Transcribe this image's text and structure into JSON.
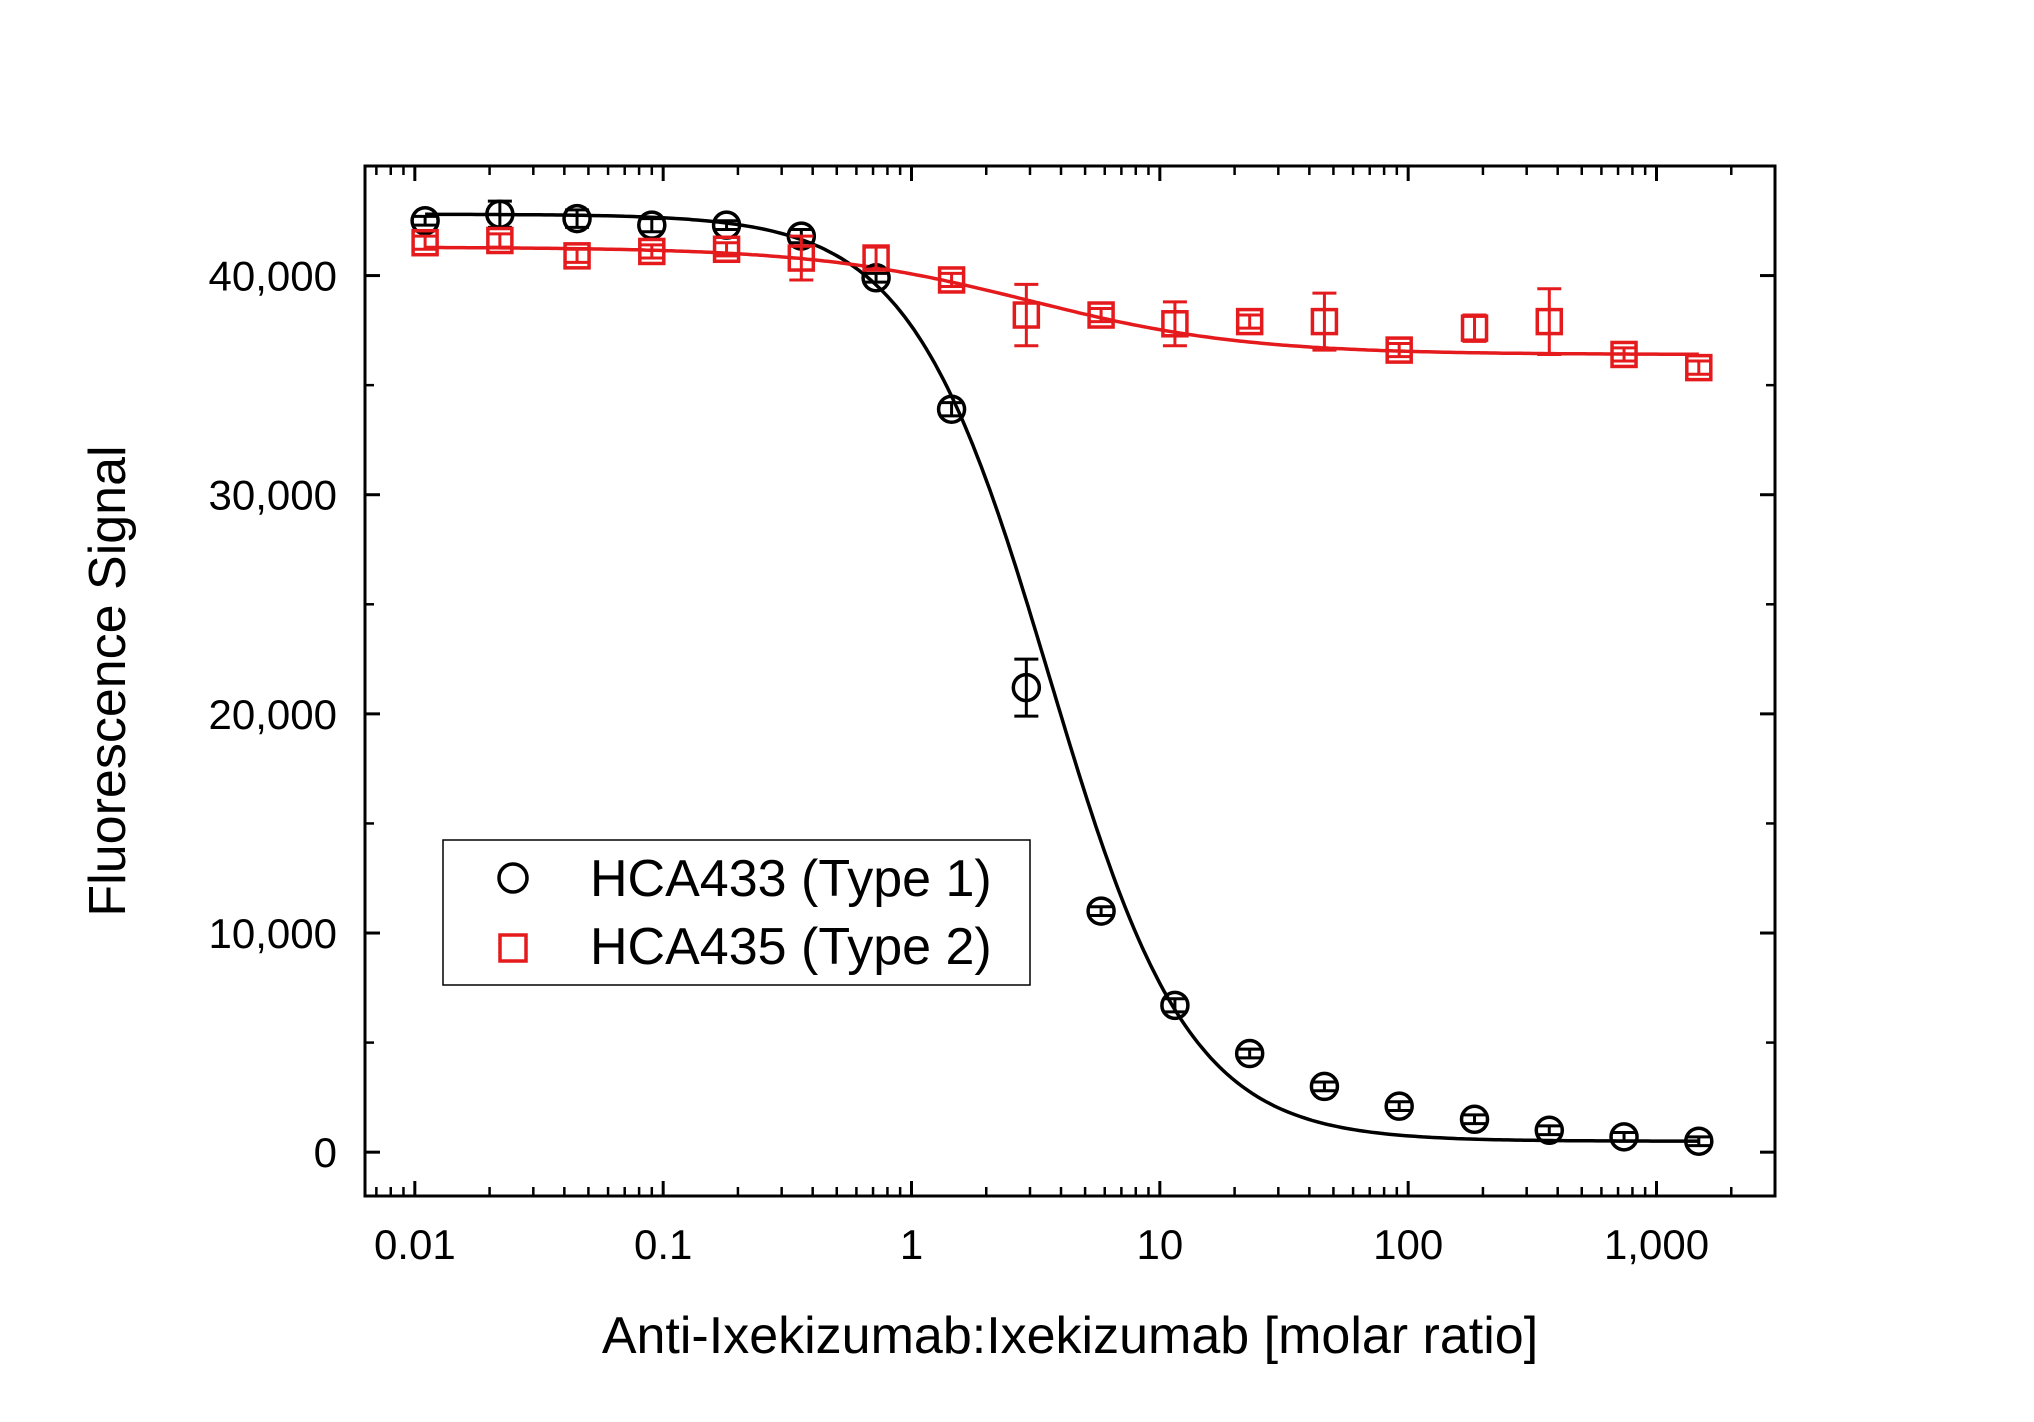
{
  "chart_data": {
    "type": "scatter",
    "title": "",
    "xlabel": "Anti-Ixekizumab:Ixekizumab [molar ratio]",
    "ylabel": "Fluorescence Signal",
    "xscale": "log",
    "xlim": [
      0.0063,
      3000
    ],
    "ylim": [
      -2000,
      45000
    ],
    "grid": false,
    "legend_position": "bottom-left",
    "x_ticks": [
      {
        "value": 0.01,
        "label": "0.01"
      },
      {
        "value": 0.1,
        "label": "0.1"
      },
      {
        "value": 1,
        "label": "1"
      },
      {
        "value": 10,
        "label": "10"
      },
      {
        "value": 100,
        "label": "100"
      },
      {
        "value": 1000,
        "label": "1,000"
      }
    ],
    "y_ticks": [
      {
        "value": 0,
        "label": "0"
      },
      {
        "value": 10000,
        "label": "10,000"
      },
      {
        "value": 20000,
        "label": "20,000"
      },
      {
        "value": 30000,
        "label": "30,000"
      },
      {
        "value": 40000,
        "label": "40,000"
      }
    ],
    "y_minor_step": 5000,
    "series": [
      {
        "name": "HCA433 (Type 1)",
        "color": "#000000",
        "marker": "circle",
        "fit": {
          "model": "4PL",
          "top": 42800,
          "bottom": 500,
          "ec50": 3.6,
          "hill": 1.55
        },
        "x": [
          0.011,
          0.022,
          0.045,
          0.09,
          0.18,
          0.36,
          0.72,
          1.45,
          2.9,
          5.8,
          11.5,
          23,
          46,
          92,
          185,
          370,
          740,
          1480
        ],
        "y": [
          42500,
          42800,
          42600,
          42300,
          42300,
          41800,
          39900,
          33900,
          21200,
          11000,
          6700,
          4500,
          3000,
          2100,
          1500,
          1000,
          700,
          500
        ],
        "err": [
          200,
          600,
          400,
          300,
          200,
          300,
          200,
          300,
          1300,
          200,
          300,
          200,
          200,
          200,
          200,
          200,
          200,
          200
        ]
      },
      {
        "name": "HCA435 (Type 2)",
        "color": "#e41a1c",
        "marker": "square",
        "fit": {
          "model": "4PL",
          "top": 41300,
          "bottom": 36400,
          "ec50": 3.0,
          "hill": 1.0
        },
        "x": [
          0.011,
          0.022,
          0.045,
          0.09,
          0.18,
          0.36,
          0.72,
          1.45,
          2.9,
          5.8,
          11.5,
          23,
          46,
          92,
          185,
          370,
          740,
          1480
        ],
        "y": [
          41500,
          41600,
          40900,
          41100,
          41200,
          40800,
          40800,
          39800,
          38200,
          38200,
          37800,
          37900,
          37900,
          36600,
          37600,
          37900,
          36400,
          35800
        ],
        "err": [
          300,
          300,
          300,
          300,
          300,
          1000,
          500,
          300,
          1400,
          300,
          1000,
          300,
          1300,
          300,
          600,
          1500,
          300,
          300
        ]
      }
    ]
  }
}
